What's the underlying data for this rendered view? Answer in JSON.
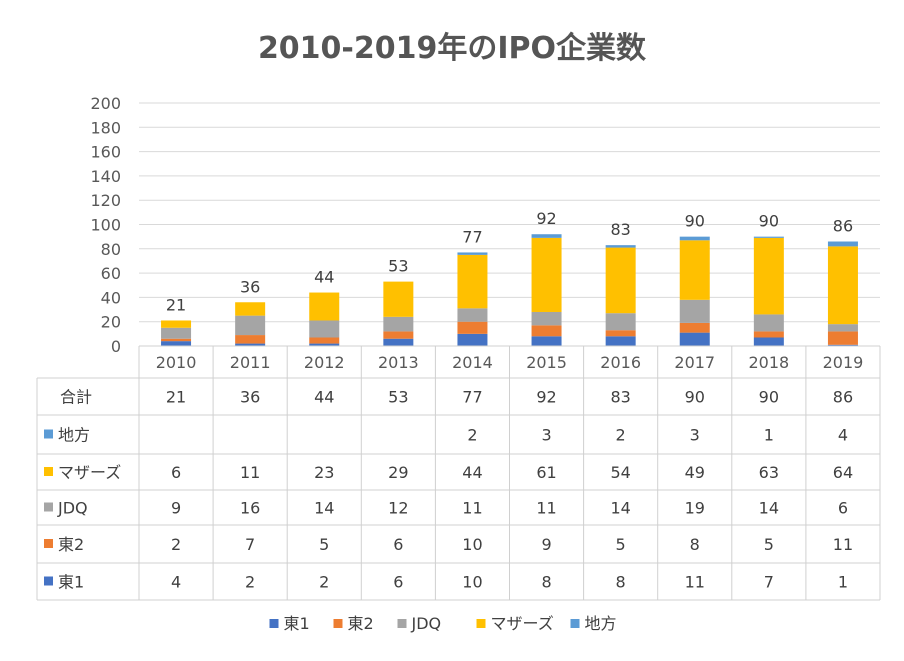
{
  "chart_data": {
    "type": "bar",
    "stacked": true,
    "title": "2010-2019年のIPO企業数",
    "categories": [
      "2010",
      "2011",
      "2012",
      "2013",
      "2014",
      "2015",
      "2016",
      "2017",
      "2018",
      "2019"
    ],
    "ylim": [
      0,
      200
    ],
    "yticks": [
      0,
      20,
      40,
      60,
      80,
      100,
      120,
      140,
      160,
      180,
      200
    ],
    "grid": true,
    "legend_position": "bottom",
    "total_label": "合計",
    "totals": [
      21,
      36,
      44,
      53,
      77,
      92,
      83,
      90,
      90,
      86
    ],
    "series": [
      {
        "name": "東1",
        "color": "#4472C4",
        "values": [
          4,
          2,
          2,
          6,
          10,
          8,
          8,
          11,
          7,
          1
        ]
      },
      {
        "name": "東2",
        "color": "#ED7D31",
        "values": [
          2,
          7,
          5,
          6,
          10,
          9,
          5,
          8,
          5,
          11
        ]
      },
      {
        "name": "JDQ",
        "color": "#A5A5A5",
        "values": [
          9,
          16,
          14,
          12,
          11,
          11,
          14,
          19,
          14,
          6
        ]
      },
      {
        "name": "マザーズ",
        "color": "#FFC000",
        "values": [
          6,
          11,
          23,
          29,
          44,
          61,
          54,
          49,
          63,
          64
        ]
      },
      {
        "name": "地方",
        "color": "#5B9BD5",
        "values": [
          null,
          null,
          null,
          null,
          2,
          3,
          2,
          3,
          1,
          4
        ]
      }
    ],
    "table_row_order": [
      "地方",
      "マザーズ",
      "JDQ",
      "東2",
      "東1"
    ]
  }
}
